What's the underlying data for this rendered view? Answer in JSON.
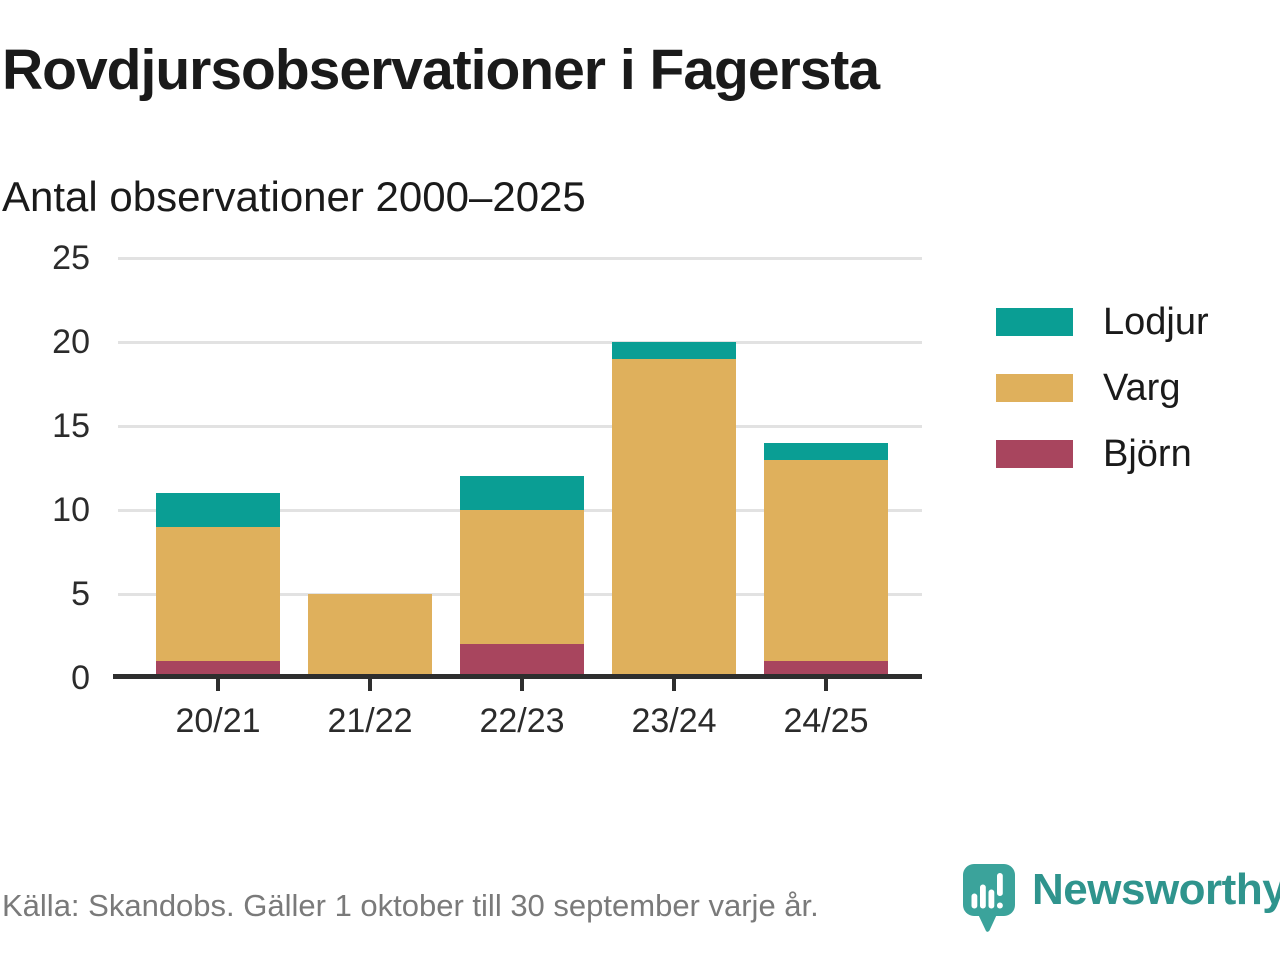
{
  "header": {
    "title": "Rovdjursobservationer i Fagersta",
    "subtitle": "Antal observationer 2000–2025"
  },
  "chart_data": {
    "type": "bar",
    "stacked": true,
    "title": "Rovdjursobservationer i Fagersta",
    "subtitle": "Antal observationer 2000–2025",
    "categories": [
      "20/21",
      "21/22",
      "22/23",
      "23/24",
      "24/25"
    ],
    "series": [
      {
        "name": "Björn",
        "color": "#a8455e",
        "values": [
          1,
          0,
          2,
          0,
          1
        ]
      },
      {
        "name": "Varg",
        "color": "#dfb05c",
        "values": [
          8,
          5,
          8,
          19,
          12
        ]
      },
      {
        "name": "Lodjur",
        "color": "#0a9e94",
        "values": [
          2,
          0,
          2,
          1,
          1
        ]
      }
    ],
    "totals": [
      11,
      5,
      12,
      20,
      14
    ],
    "xlabel": "",
    "ylabel": "",
    "ylim": [
      0,
      25
    ],
    "yticks": [
      0,
      5,
      10,
      15,
      20,
      25
    ],
    "grid": "horizontal",
    "legend_position": "right"
  },
  "legend": {
    "items": [
      {
        "label": "Lodjur",
        "color": "#0a9e94"
      },
      {
        "label": "Varg",
        "color": "#dfb05c"
      },
      {
        "label": "Björn",
        "color": "#a8455e"
      }
    ]
  },
  "footer": {
    "source": "Källa: Skandobs. Gäller 1 oktober till 30 september varje år.",
    "brand": "Newsworthy",
    "brand_color": "#2f948d",
    "logo_color": "#3ba39b"
  }
}
